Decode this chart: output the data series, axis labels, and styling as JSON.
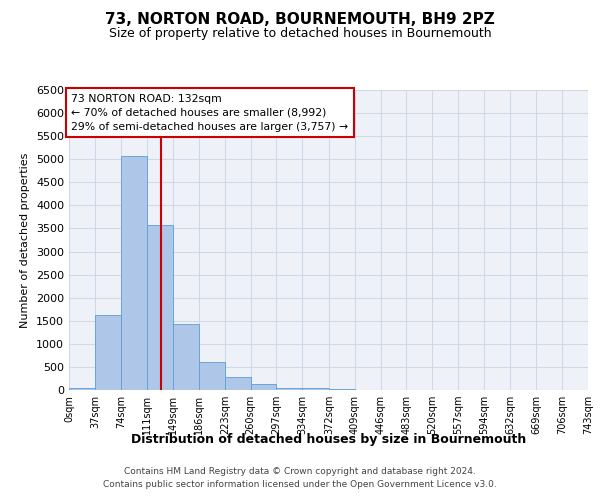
{
  "title": "73, NORTON ROAD, BOURNEMOUTH, BH9 2PZ",
  "subtitle": "Size of property relative to detached houses in Bournemouth",
  "bar_values": [
    50,
    1620,
    5080,
    3580,
    1430,
    610,
    290,
    140,
    50,
    40,
    20,
    10,
    0,
    0,
    0,
    0,
    0,
    0,
    0,
    0
  ],
  "bin_edges": [
    0,
    37,
    74,
    111,
    149,
    186,
    223,
    260,
    297,
    334,
    372,
    409,
    446,
    483,
    520,
    557,
    594,
    632,
    669,
    706,
    743
  ],
  "tick_labels": [
    "0sqm",
    "37sqm",
    "74sqm",
    "111sqm",
    "149sqm",
    "186sqm",
    "223sqm",
    "260sqm",
    "297sqm",
    "334sqm",
    "372sqm",
    "409sqm",
    "446sqm",
    "483sqm",
    "520sqm",
    "557sqm",
    "594sqm",
    "632sqm",
    "669sqm",
    "706sqm",
    "743sqm"
  ],
  "bar_color": "#aec6e8",
  "bar_edge_color": "#5a9fd4",
  "vline_x": 132,
  "vline_color": "#cc0000",
  "ylabel": "Number of detached properties",
  "xlabel": "Distribution of detached houses by size in Bournemouth",
  "ylim": [
    0,
    6500
  ],
  "yticks": [
    0,
    500,
    1000,
    1500,
    2000,
    2500,
    3000,
    3500,
    4000,
    4500,
    5000,
    5500,
    6000,
    6500
  ],
  "annotation_title": "73 NORTON ROAD: 132sqm",
  "annotation_line1": "← 70% of detached houses are smaller (8,992)",
  "annotation_line2": "29% of semi-detached houses are larger (3,757) →",
  "annotation_box_color": "#cc0000",
  "footer_line1": "Contains HM Land Registry data © Crown copyright and database right 2024.",
  "footer_line2": "Contains public sector information licensed under the Open Government Licence v3.0.",
  "grid_color": "#d0d8e8",
  "background_color": "#eef2f8"
}
